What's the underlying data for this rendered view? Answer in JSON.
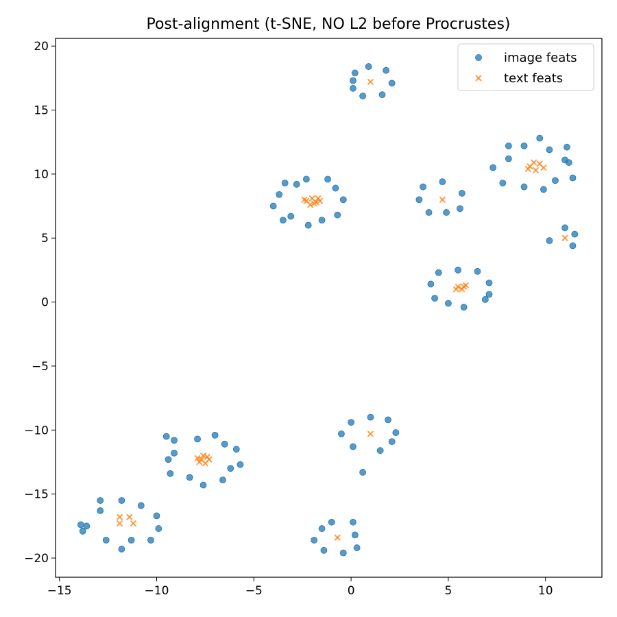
{
  "chart_data": {
    "type": "scatter",
    "title": "Post-alignment (t-SNE, NO L2 before Procrustes)",
    "xlabel": "",
    "ylabel": "",
    "xlim": [
      -15.2,
      12.9
    ],
    "ylim": [
      -21.5,
      20.6
    ],
    "xticks": [
      -15,
      -10,
      -5,
      0,
      5,
      10
    ],
    "xtick_labels": [
      "−15",
      "−10",
      "−5",
      "0",
      "5",
      "10"
    ],
    "yticks": [
      20,
      15,
      10,
      5,
      0,
      -5,
      -10,
      -15,
      -20
    ],
    "ytick_labels": [
      "20",
      "15",
      "10",
      "5",
      "0",
      "−5",
      "−10",
      "−15",
      "−20"
    ],
    "grid": false,
    "legend_position": "top-right",
    "series": [
      {
        "name": "image feats",
        "marker": "circle",
        "color": "#1f77b4",
        "points": [
          [
            0.9,
            18.4
          ],
          [
            1.8,
            18.1
          ],
          [
            0.2,
            17.9
          ],
          [
            0.1,
            17.3
          ],
          [
            2.1,
            17.1
          ],
          [
            0.1,
            16.7
          ],
          [
            0.6,
            16.1
          ],
          [
            1.6,
            16.2
          ],
          [
            9.7,
            12.8
          ],
          [
            8.1,
            12.2
          ],
          [
            8.9,
            12.2
          ],
          [
            10.2,
            11.9
          ],
          [
            11.1,
            12.1
          ],
          [
            8.1,
            11.2
          ],
          [
            11.0,
            11.1
          ],
          [
            11.2,
            10.9
          ],
          [
            7.3,
            10.5
          ],
          [
            10.5,
            9.5
          ],
          [
            11.4,
            9.7
          ],
          [
            7.8,
            9.3
          ],
          [
            8.9,
            9.0
          ],
          [
            9.9,
            8.8
          ],
          [
            -2.3,
            9.6
          ],
          [
            -1.2,
            9.6
          ],
          [
            -3.4,
            9.3
          ],
          [
            -2.8,
            9.2
          ],
          [
            -0.8,
            8.9
          ],
          [
            -3.7,
            8.4
          ],
          [
            -0.4,
            8.0
          ],
          [
            -4.0,
            7.5
          ],
          [
            -3.1,
            6.7
          ],
          [
            -0.7,
            6.8
          ],
          [
            -3.5,
            6.4
          ],
          [
            -1.5,
            6.4
          ],
          [
            -2.2,
            6.0
          ],
          [
            4.7,
            9.4
          ],
          [
            3.7,
            9.0
          ],
          [
            5.7,
            8.5
          ],
          [
            3.5,
            8.0
          ],
          [
            5.6,
            7.3
          ],
          [
            4.0,
            7.0
          ],
          [
            4.9,
            7.0
          ],
          [
            11.0,
            5.8
          ],
          [
            11.5,
            5.3
          ],
          [
            10.2,
            4.8
          ],
          [
            11.4,
            4.4
          ],
          [
            5.5,
            2.5
          ],
          [
            6.5,
            2.4
          ],
          [
            4.5,
            2.3
          ],
          [
            7.1,
            1.5
          ],
          [
            4.1,
            1.4
          ],
          [
            7.1,
            0.6
          ],
          [
            4.3,
            0.3
          ],
          [
            6.9,
            0.2
          ],
          [
            5.0,
            -0.1
          ],
          [
            5.8,
            -0.4
          ],
          [
            1.0,
            -9.0
          ],
          [
            1.9,
            -9.2
          ],
          [
            0.0,
            -9.4
          ],
          [
            2.3,
            -10.2
          ],
          [
            -0.5,
            -10.3
          ],
          [
            2.1,
            -10.9
          ],
          [
            0.1,
            -11.3
          ],
          [
            1.5,
            -11.6
          ],
          [
            0.6,
            -13.3
          ],
          [
            -9.5,
            -10.5
          ],
          [
            -9.1,
            -10.8
          ],
          [
            -7.9,
            -10.7
          ],
          [
            -7.0,
            -10.4
          ],
          [
            -6.5,
            -11.1
          ],
          [
            -5.9,
            -11.5
          ],
          [
            -9.1,
            -11.8
          ],
          [
            -9.4,
            -12.3
          ],
          [
            -5.7,
            -12.7
          ],
          [
            -6.2,
            -13.0
          ],
          [
            -9.3,
            -13.4
          ],
          [
            -8.3,
            -13.7
          ],
          [
            -6.6,
            -13.9
          ],
          [
            -7.6,
            -14.3
          ],
          [
            -12.9,
            -15.5
          ],
          [
            -11.8,
            -15.5
          ],
          [
            -10.8,
            -15.9
          ],
          [
            -12.9,
            -16.3
          ],
          [
            -10.0,
            -16.7
          ],
          [
            -13.9,
            -17.4
          ],
          [
            -13.6,
            -17.5
          ],
          [
            -13.8,
            -17.9
          ],
          [
            -9.9,
            -17.7
          ],
          [
            -12.6,
            -18.6
          ],
          [
            -11.3,
            -18.6
          ],
          [
            -10.3,
            -18.6
          ],
          [
            -11.8,
            -19.3
          ],
          [
            -1.0,
            -17.2
          ],
          [
            0.1,
            -17.2
          ],
          [
            -1.5,
            -17.7
          ],
          [
            0.2,
            -18.2
          ],
          [
            -1.9,
            -18.6
          ],
          [
            0.3,
            -19.2
          ],
          [
            -1.4,
            -19.4
          ],
          [
            -0.4,
            -19.6
          ]
        ]
      },
      {
        "name": "text feats",
        "marker": "x",
        "color": "#ff7f0e",
        "points": [
          [
            1.0,
            17.2
          ],
          [
            9.2,
            10.6
          ],
          [
            9.4,
            10.9
          ],
          [
            9.7,
            10.8
          ],
          [
            9.5,
            10.3
          ],
          [
            9.9,
            10.5
          ],
          [
            9.1,
            10.4
          ],
          [
            -2.3,
            7.9
          ],
          [
            -2.0,
            8.1
          ],
          [
            -1.8,
            7.8
          ],
          [
            -2.1,
            7.6
          ],
          [
            -1.7,
            8.1
          ],
          [
            -1.6,
            7.9
          ],
          [
            -2.4,
            8.0
          ],
          [
            -1.9,
            7.7
          ],
          [
            4.7,
            8.0
          ],
          [
            11.0,
            5.0
          ],
          [
            5.5,
            1.2
          ],
          [
            5.7,
            1.0
          ],
          [
            5.9,
            1.3
          ],
          [
            5.4,
            1.0
          ],
          [
            5.8,
            1.2
          ],
          [
            1.0,
            -10.3
          ],
          [
            -7.9,
            -12.2
          ],
          [
            -7.6,
            -12.0
          ],
          [
            -7.3,
            -12.3
          ],
          [
            -7.8,
            -12.5
          ],
          [
            -7.5,
            -12.6
          ],
          [
            -7.4,
            -12.1
          ],
          [
            -7.7,
            -12.3
          ],
          [
            -11.9,
            -16.8
          ],
          [
            -11.4,
            -16.8
          ],
          [
            -11.9,
            -17.3
          ],
          [
            -11.2,
            -17.3
          ],
          [
            -0.7,
            -18.4
          ]
        ]
      }
    ]
  }
}
